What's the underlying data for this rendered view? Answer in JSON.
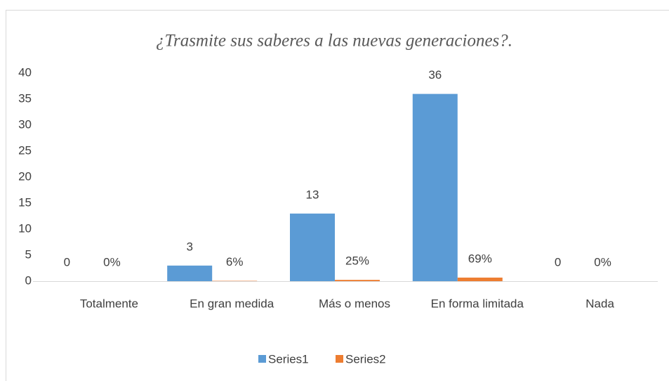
{
  "chart_data": {
    "type": "bar",
    "title": "¿Trasmite sus saberes a las nuevas generaciones?.",
    "categories": [
      "Totalmente",
      "En gran medida",
      "Más o menos",
      "En forma limitada",
      "Nada"
    ],
    "series": [
      {
        "name": "Series1",
        "color": "#5b9bd5",
        "values": [
          0,
          3,
          13,
          36,
          0
        ]
      },
      {
        "name": "Series2",
        "color": "#ed7d31",
        "values": [
          0,
          0.06,
          0.25,
          0.69,
          0
        ],
        "value_labels": [
          "0%",
          "6%",
          "25%",
          "69%",
          "0%"
        ]
      }
    ],
    "ylim": [
      0,
      40
    ],
    "yticks": [
      0,
      5,
      10,
      15,
      20,
      25,
      30,
      35,
      40
    ],
    "grid": false,
    "legend": "bottom"
  }
}
